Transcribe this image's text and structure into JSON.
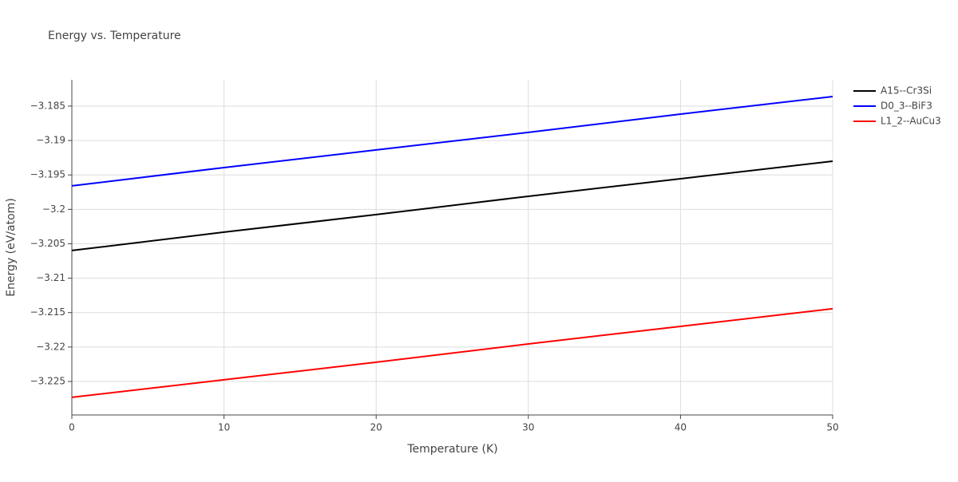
{
  "chart_data": {
    "type": "line",
    "title": "Energy vs. Temperature",
    "x_label": "Temperature (K)",
    "y_label": "Energy (eV/atom)",
    "x": [
      0,
      10,
      20,
      30,
      40,
      50
    ],
    "series": [
      {
        "name": "A15--Cr3Si",
        "color": "#000000",
        "values": [
          -3.20598,
          -3.20331,
          -3.20076,
          -3.1981,
          -3.19555,
          -3.193
        ]
      },
      {
        "name": "D0_3--BiF3",
        "color": "#0000ff",
        "values": [
          -3.19659,
          -3.19393,
          -3.19137,
          -3.18882,
          -3.18616,
          -3.18361
        ]
      },
      {
        "name": "L1_2--AuCu3",
        "color": "#ff0000",
        "values": [
          -3.2273,
          -3.22476,
          -3.22221,
          -3.21955,
          -3.217,
          -3.21444
        ]
      }
    ],
    "xlim": [
      0,
      50
    ],
    "xticks": [
      0,
      10,
      20,
      30,
      40,
      50
    ],
    "ylim": [
      -3.22987,
      -3.18118
    ],
    "yticks": [
      {
        "value": -3.225,
        "label": "−3.225"
      },
      {
        "value": -3.22,
        "label": "−3.22"
      },
      {
        "value": -3.215,
        "label": "−3.215"
      },
      {
        "value": -3.21,
        "label": "−3.21"
      },
      {
        "value": -3.205,
        "label": "−3.205"
      },
      {
        "value": -3.2,
        "label": "−3.2"
      },
      {
        "value": -3.195,
        "label": "−3.195"
      },
      {
        "value": -3.19,
        "label": "−3.19"
      },
      {
        "value": -3.185,
        "label": "−3.185"
      }
    ],
    "grid": true,
    "legend": "right"
  }
}
